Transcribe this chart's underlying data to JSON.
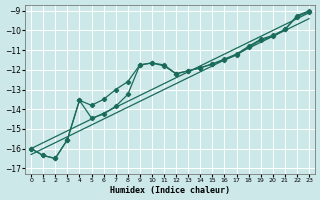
{
  "xlabel": "Humidex (Indice chaleur)",
  "background_color": "#cce8e8",
  "grid_color": "#ffffff",
  "line_color": "#1a6b5a",
  "xlim": [
    -0.5,
    23.5
  ],
  "ylim": [
    -17.3,
    -8.7
  ],
  "xticks": [
    0,
    1,
    2,
    3,
    4,
    5,
    6,
    7,
    8,
    9,
    10,
    11,
    12,
    13,
    14,
    15,
    16,
    17,
    18,
    19,
    20,
    21,
    22,
    23
  ],
  "yticks": [
    -9,
    -10,
    -11,
    -12,
    -13,
    -14,
    -15,
    -16,
    -17
  ],
  "straight1_x": [
    0,
    1,
    2,
    3,
    4,
    5,
    6,
    7,
    8,
    9,
    10,
    11,
    12,
    13,
    14,
    15,
    16,
    17,
    18,
    19,
    20,
    21,
    22,
    23
  ],
  "straight1_y": [
    -16.0,
    -15.7,
    -15.4,
    -15.1,
    -14.8,
    -14.5,
    -14.2,
    -13.9,
    -13.6,
    -13.3,
    -13.0,
    -12.7,
    -12.4,
    -12.1,
    -11.8,
    -11.5,
    -11.2,
    -10.9,
    -10.6,
    -10.3,
    -10.0,
    -9.7,
    -9.4,
    -9.1
  ],
  "straight2_x": [
    0,
    1,
    2,
    3,
    4,
    5,
    6,
    7,
    8,
    9,
    10,
    11,
    12,
    13,
    14,
    15,
    16,
    17,
    18,
    19,
    20,
    21,
    22,
    23
  ],
  "straight2_y": [
    -16.3,
    -16.0,
    -15.7,
    -15.4,
    -15.1,
    -14.8,
    -14.5,
    -14.2,
    -13.9,
    -13.6,
    -13.3,
    -13.0,
    -12.7,
    -12.4,
    -12.1,
    -11.8,
    -11.5,
    -11.2,
    -10.9,
    -10.6,
    -10.3,
    -10.0,
    -9.7,
    -9.4
  ],
  "wavy1_x": [
    0,
    1,
    2,
    3,
    4,
    5,
    6,
    7,
    8,
    9,
    10,
    11,
    12,
    13,
    14,
    15,
    16,
    17,
    18,
    19,
    20,
    21,
    22,
    23
  ],
  "wavy1_y": [
    -16.0,
    -16.35,
    -16.5,
    -15.55,
    -13.55,
    -13.8,
    -13.5,
    -13.0,
    -12.6,
    -11.75,
    -11.65,
    -11.8,
    -12.2,
    -12.05,
    -11.9,
    -11.7,
    -11.45,
    -11.2,
    -10.8,
    -10.45,
    -10.25,
    -9.95,
    -9.25,
    -9.0
  ],
  "wavy2_x": [
    0,
    1,
    2,
    3,
    4,
    5,
    6,
    7,
    8,
    9,
    10,
    11,
    12,
    13,
    14,
    15,
    16,
    17,
    18,
    19,
    20,
    21,
    22,
    23
  ],
  "wavy2_y": [
    -16.0,
    -16.35,
    -16.5,
    -15.55,
    -13.55,
    -14.45,
    -14.25,
    -13.85,
    -13.25,
    -11.75,
    -11.65,
    -11.75,
    -12.2,
    -12.05,
    -11.9,
    -11.7,
    -11.5,
    -11.25,
    -10.85,
    -10.5,
    -10.3,
    -9.95,
    -9.3,
    -9.05
  ]
}
